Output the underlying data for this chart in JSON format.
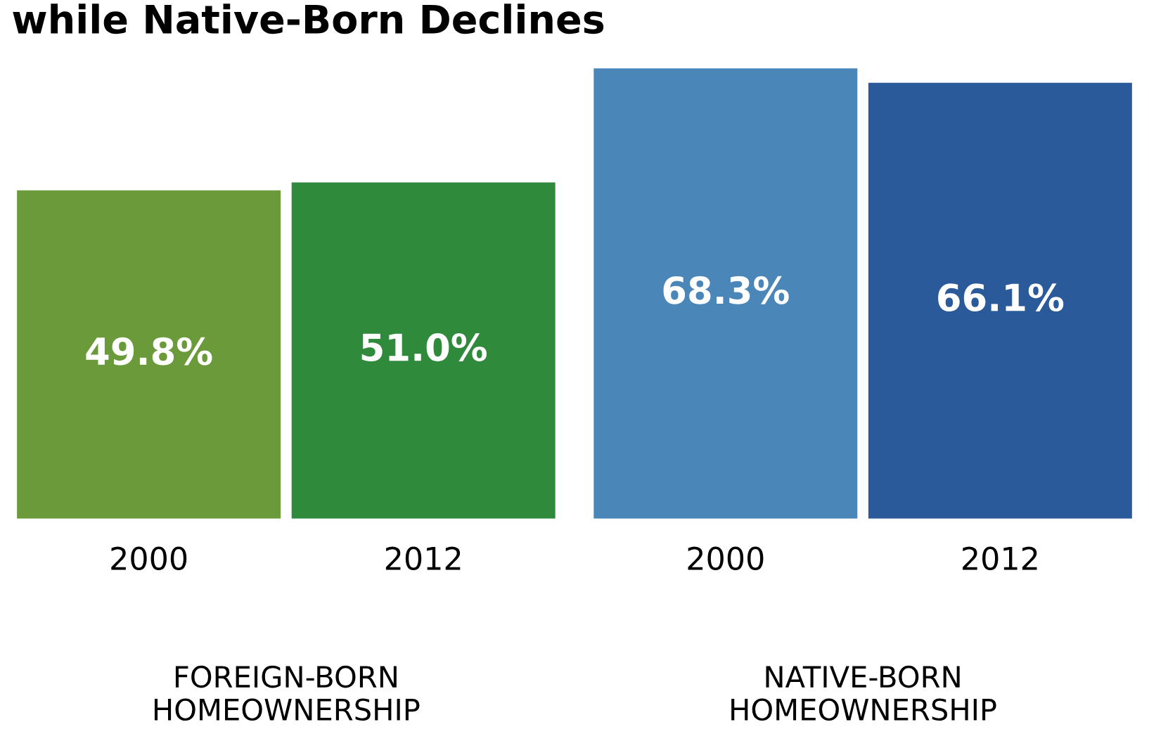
{
  "chart_data": {
    "type": "bar",
    "title": "while Native-Born Declines",
    "categories": [
      "2000",
      "2012",
      "2000",
      "2012"
    ],
    "values": [
      49.8,
      51.0,
      68.3,
      66.1
    ],
    "value_labels": [
      "49.8%",
      "51.0%",
      "68.3%",
      "66.1%"
    ],
    "colors": [
      "#6a9a3a",
      "#2f8a3c",
      "#4a86b8",
      "#2a5a9a"
    ],
    "annotations": [
      "FOREIGN-BORN\nHOMEOWNERSHIP",
      "NATIVE-BORN\nHOMEOWNERSHIP"
    ],
    "grid": false,
    "legend": false
  }
}
